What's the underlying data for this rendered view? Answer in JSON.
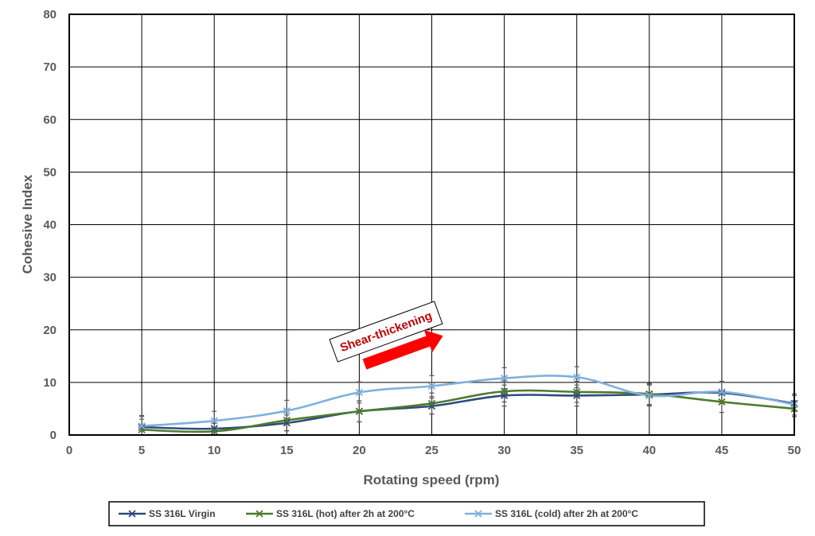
{
  "chart_data": {
    "type": "line",
    "xlabel": "Rotating speed (rpm)",
    "ylabel": "Cohesive Index",
    "xlim": [
      0,
      50
    ],
    "ylim": [
      0,
      80
    ],
    "x_ticks": [
      0,
      5,
      10,
      15,
      20,
      25,
      30,
      35,
      40,
      45,
      50
    ],
    "y_ticks": [
      0,
      10,
      20,
      30,
      40,
      50,
      60,
      70,
      80
    ],
    "grid": true,
    "legend_position": "bottom",
    "smooth": true,
    "x": [
      5,
      10,
      15,
      20,
      25,
      30,
      35,
      40,
      45,
      50
    ],
    "series": [
      {
        "name": "SS 316L Virgin",
        "color": "#2f4b7c",
        "values": [
          1.5,
          1.2,
          2.3,
          4.5,
          5.5,
          7.5,
          7.5,
          7.7,
          8.0,
          6.0
        ],
        "errors": [
          2.0,
          1.5,
          1.5,
          2.0,
          1.5,
          2.0,
          2.0,
          2.0,
          2.0,
          1.5
        ]
      },
      {
        "name": "SS 316L (hot) after 2h at 200°C",
        "color": "#4e7a2e",
        "values": [
          1.0,
          0.7,
          2.8,
          4.5,
          6.0,
          8.3,
          8.2,
          7.8,
          6.3,
          5.0
        ],
        "errors": [
          2.0,
          1.5,
          2.0,
          2.0,
          2.0,
          2.0,
          2.0,
          2.0,
          2.0,
          1.5
        ]
      },
      {
        "name": "SS 316L (cold) after 2h at 200°C",
        "color": "#7fb0de",
        "values": [
          1.7,
          2.7,
          4.6,
          8.1,
          9.3,
          10.8,
          11.0,
          7.5,
          8.2,
          5.8
        ],
        "errors": [
          2.0,
          1.8,
          2.0,
          2.0,
          2.0,
          2.0,
          2.0,
          2.0,
          2.0,
          2.0
        ]
      }
    ],
    "annotations": [
      {
        "text": "Shear-thickening",
        "color": "#c00000",
        "arrow": "up-right",
        "arrow_color": "#ff0000"
      }
    ]
  }
}
